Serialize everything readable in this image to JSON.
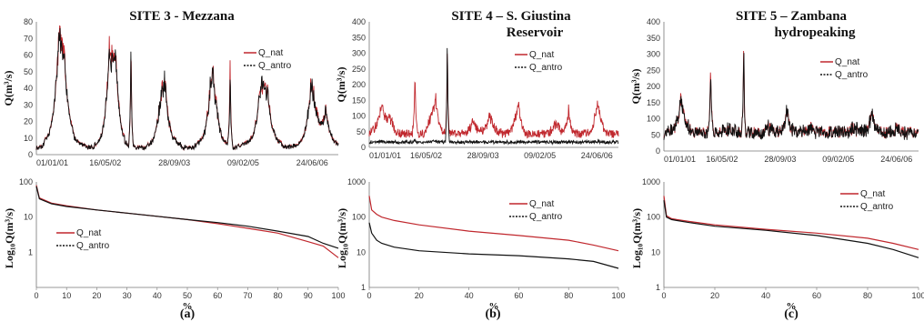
{
  "colors": {
    "nat": "#c0272d",
    "antro": "#111111"
  },
  "chart_data": [
    {
      "type": "line",
      "panel": "top",
      "site": "3",
      "title": "SITE 3 - Mezzana",
      "title2": "",
      "ylabel": "Q(m³/s)",
      "ylim": [
        0,
        80
      ],
      "yticks": [
        0,
        10,
        20,
        30,
        40,
        50,
        60,
        70,
        80
      ],
      "xticks": [
        "01/01/01",
        "16/05/02",
        "28/09/03",
        "09/02/05",
        "24/06/06"
      ],
      "xrange_years": [
        2001.0,
        2007.0
      ],
      "legend": [
        "Q_nat",
        "Q_antro"
      ],
      "legend_pos": "top-right",
      "base": [
        3,
        3
      ],
      "spikes": [
        [
          2001.45,
          48,
          0.1
        ],
        [
          2001.55,
          30,
          0.14
        ],
        [
          2002.45,
          42,
          0.1
        ],
        [
          2002.58,
          40,
          0.08
        ],
        [
          2002.88,
          76,
          0.015
        ],
        [
          2003.55,
          28,
          0.12
        ],
        [
          2004.5,
          32,
          0.12
        ],
        [
          2004.85,
          60,
          0.015
        ],
        [
          2005.45,
          20,
          0.15
        ],
        [
          2005.6,
          22,
          0.1
        ],
        [
          2006.45,
          22,
          0.12
        ],
        [
          2006.75,
          25,
          0.1
        ]
      ]
    },
    {
      "type": "line",
      "panel": "top",
      "site": "4",
      "title": "SITE 4 – S. Giustina",
      "title2": "Reservoir",
      "ylabel": "Q(m³/s)",
      "ylim": [
        0,
        400
      ],
      "yticks": [
        0,
        50,
        100,
        150,
        200,
        250,
        300,
        350,
        400
      ],
      "xticks": [
        "01/01/01",
        "16/05/02",
        "28/09/03",
        "09/02/05",
        "24/06/06"
      ],
      "xrange_years": [
        2001.0,
        2007.0
      ],
      "legend": [
        "Q_nat",
        "Q_antro"
      ],
      "legend_pos": "top-right",
      "base": [
        30,
        10
      ],
      "spikes": [
        [
          2001.3,
          110,
          0.1
        ],
        [
          2002.1,
          250,
          0.02
        ],
        [
          2002.88,
          360,
          0.015
        ],
        [
          2002.6,
          120,
          0.08
        ],
        [
          2003.9,
          70,
          0.1
        ],
        [
          2004.6,
          110,
          0.05
        ],
        [
          2005.8,
          90,
          0.05
        ],
        [
          2006.5,
          80,
          0.08
        ]
      ]
    },
    {
      "type": "line",
      "panel": "top",
      "site": "5",
      "title": "SITE 5 – Zambana",
      "title2": "hydropeaking",
      "ylabel": "Q(m³/s)",
      "ylim": [
        0,
        400
      ],
      "yticks": [
        0,
        50,
        100,
        150,
        200,
        250,
        300,
        350,
        400
      ],
      "xticks": [
        "01/01/01",
        "16/05/02",
        "28/09/03",
        "09/02/05",
        "24/06/06"
      ],
      "xrange_years": [
        2001.0,
        2007.0
      ],
      "legend": [
        "Q_nat",
        "Q_antro"
      ],
      "legend_pos": "top-right",
      "base": [
        40,
        40
      ],
      "spikes": [
        [
          2001.4,
          120,
          0.08
        ],
        [
          2002.1,
          250,
          0.02
        ],
        [
          2002.88,
          360,
          0.015
        ],
        [
          2003.9,
          80,
          0.06
        ],
        [
          2005.9,
          80,
          0.06
        ]
      ]
    },
    {
      "type": "line",
      "panel": "bottom",
      "site": "3",
      "ylabel": "Log₁₀Q(m³/s)",
      "xlabel": "%",
      "scale": "log",
      "ylim": [
        0.1,
        100
      ],
      "yticks": [
        "1",
        "10",
        "100"
      ],
      "ytick_vals": [
        1,
        10,
        100
      ],
      "xticks": [
        0,
        10,
        20,
        30,
        40,
        50,
        60,
        70,
        80,
        90,
        100
      ],
      "xlim": [
        0,
        100
      ],
      "legend": [
        "Q_nat",
        "Q_antro"
      ],
      "legend_pos": "center-left",
      "series": [
        {
          "name": "Q_nat",
          "x": [
            0,
            1,
            5,
            10,
            20,
            30,
            40,
            50,
            60,
            70,
            80,
            90,
            95,
            100
          ],
          "y": [
            80,
            35,
            25,
            21,
            16,
            13,
            10.5,
            8.5,
            6.5,
            4.8,
            3.5,
            2,
            1.5,
            0.7
          ]
        },
        {
          "name": "Q_antro",
          "x": [
            0,
            1,
            5,
            10,
            20,
            30,
            40,
            50,
            60,
            70,
            80,
            90,
            95,
            100
          ],
          "y": [
            75,
            33,
            24,
            20,
            16,
            13,
            10.5,
            8.5,
            7,
            5.5,
            4,
            2.8,
            1.8,
            1.3
          ]
        }
      ]
    },
    {
      "type": "line",
      "panel": "bottom",
      "site": "4",
      "ylabel": "Log₁₀Q(m³/s)",
      "xlabel": "%",
      "scale": "log",
      "ylim": [
        1,
        1000
      ],
      "yticks": [
        "1",
        "10",
        "100",
        "1000"
      ],
      "ytick_vals": [
        1,
        10,
        100,
        1000
      ],
      "xticks": [
        0,
        20,
        40,
        60,
        80,
        100
      ],
      "xlim": [
        0,
        100
      ],
      "legend": [
        "Q_nat",
        "Q_antro"
      ],
      "legend_pos": "top-right",
      "series": [
        {
          "name": "Q_nat",
          "x": [
            0,
            1,
            3,
            5,
            10,
            20,
            40,
            60,
            80,
            90,
            100
          ],
          "y": [
            400,
            160,
            120,
            100,
            80,
            60,
            40,
            30,
            22,
            16,
            11
          ]
        },
        {
          "name": "Q_antro",
          "x": [
            0,
            1,
            3,
            5,
            10,
            20,
            40,
            60,
            80,
            90,
            100
          ],
          "y": [
            70,
            35,
            22,
            18,
            14,
            11,
            9,
            8,
            6.5,
            5.5,
            3.5
          ]
        }
      ]
    },
    {
      "type": "line",
      "panel": "bottom",
      "site": "5",
      "ylabel": "Log₁₀Q(m³/s)",
      "xlabel": "%",
      "scale": "log",
      "ylim": [
        1,
        1000
      ],
      "yticks": [
        "1",
        "10",
        "100",
        "1000"
      ],
      "ytick_vals": [
        1,
        10,
        100,
        1000
      ],
      "xticks": [
        0,
        20,
        40,
        60,
        80,
        100
      ],
      "xlim": [
        0,
        100
      ],
      "legend": [
        "Q_nat",
        "Q_antro"
      ],
      "legend_pos": "top-right",
      "series": [
        {
          "name": "Q_nat",
          "x": [
            0,
            1,
            3,
            5,
            10,
            20,
            40,
            60,
            80,
            90,
            100
          ],
          "y": [
            400,
            110,
            90,
            85,
            75,
            60,
            45,
            35,
            25,
            18,
            12
          ]
        },
        {
          "name": "Q_antro",
          "x": [
            0,
            1,
            3,
            5,
            10,
            20,
            40,
            60,
            80,
            90,
            100
          ],
          "y": [
            300,
            100,
            85,
            80,
            70,
            55,
            42,
            30,
            18,
            12,
            7
          ]
        }
      ]
    }
  ],
  "panel_labels": [
    "(a)",
    "(b)",
    "(c)"
  ]
}
